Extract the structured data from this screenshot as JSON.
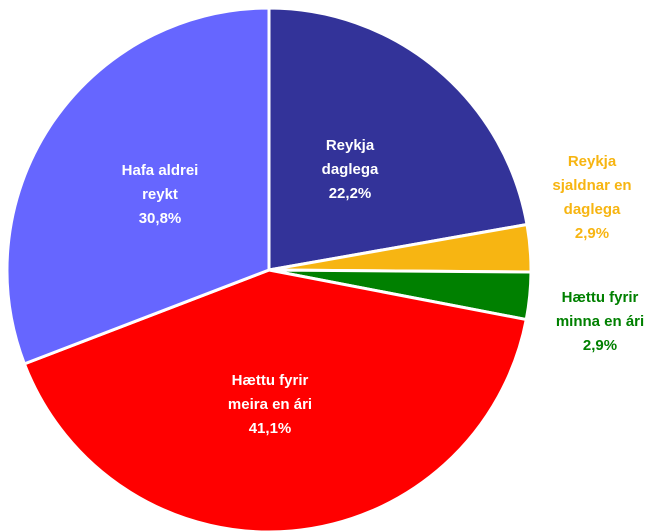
{
  "chart_data": {
    "type": "pie",
    "categories": [
      "Reykja\ndaglega",
      "Reykja\nsjaldnar en\ndaglega",
      "Hættu fyrir\nminna en ári",
      "Hættu fyrir\nmeira en ári",
      "Hafa aldrei\nreykt"
    ],
    "values": [
      22.2,
      2.9,
      2.9,
      41.1,
      30.8
    ],
    "value_labels": [
      "22,2%",
      "2,9%",
      "2,9%",
      "41,1%",
      "30,8%"
    ],
    "colors": [
      "#333399",
      "#f7b512",
      "#008000",
      "#ff0000",
      "#6666ff"
    ]
  }
}
